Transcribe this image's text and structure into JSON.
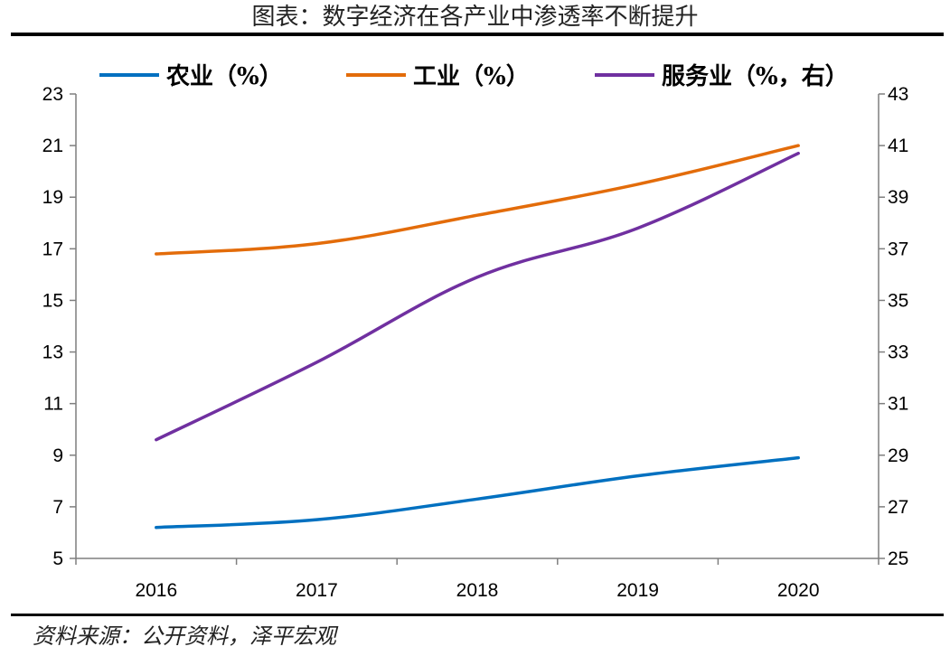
{
  "title": "图表：数字经济在各产业中渗透率不断提升",
  "source": "资料来源：公开资料，泽平宏观",
  "chart_data": {
    "type": "line",
    "categories": [
      "2016",
      "2017",
      "2018",
      "2019",
      "2020"
    ],
    "series": [
      {
        "name": "农业（%）",
        "axis": "left",
        "color": "#0070c0",
        "values": [
          6.2,
          6.5,
          7.3,
          8.2,
          8.9
        ]
      },
      {
        "name": "工业（%）",
        "axis": "left",
        "color": "#e36c0a",
        "values": [
          16.8,
          17.2,
          18.3,
          19.5,
          21.0
        ]
      },
      {
        "name": "服务业（%，右）",
        "axis": "right",
        "color": "#7030a0",
        "values": [
          29.6,
          32.6,
          35.9,
          37.8,
          40.7
        ]
      }
    ],
    "y_left": {
      "lim": [
        5,
        23
      ],
      "ticks": [
        "5",
        "7",
        "9",
        "11",
        "13",
        "15",
        "17",
        "19",
        "21",
        "23"
      ]
    },
    "y_right": {
      "lim": [
        25,
        43
      ],
      "ticks": [
        "25",
        "27",
        "29",
        "31",
        "33",
        "35",
        "37",
        "39",
        "41",
        "43"
      ]
    },
    "legend": "top",
    "grid": false
  }
}
